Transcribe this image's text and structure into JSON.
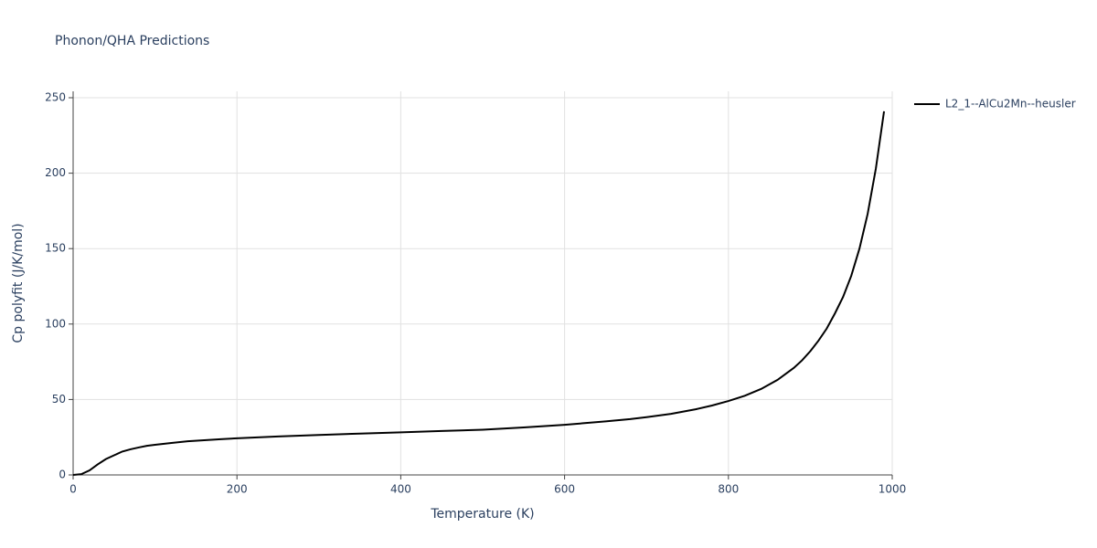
{
  "chart_data": {
    "type": "line",
    "title": "Phonon/QHA Predictions",
    "x_label": "Temperature (K)",
    "y_label": "Cp polyfit (J/K/mol)",
    "x": [
      0,
      10,
      20,
      30,
      40,
      50,
      60,
      70,
      80,
      90,
      100,
      120,
      140,
      160,
      180,
      200,
      250,
      300,
      350,
      400,
      450,
      500,
      550,
      600,
      650,
      680,
      700,
      730,
      760,
      780,
      800,
      820,
      840,
      860,
      880,
      890,
      900,
      910,
      920,
      930,
      940,
      950,
      960,
      970,
      980,
      990
    ],
    "series": [
      {
        "name": "L2_1--AlCu2Mn--heusler",
        "color": "#000000",
        "values": [
          0,
          0.5,
          3,
          7,
          10.5,
          13,
          15.5,
          17,
          18.2,
          19.3,
          20,
          21.2,
          22.3,
          23,
          23.7,
          24.3,
          25.5,
          26.5,
          27.4,
          28.2,
          29.1,
          30,
          31.5,
          33.2,
          35.5,
          37,
          38.3,
          40.5,
          43.5,
          46,
          49,
          52.5,
          57,
          63,
          71,
          76,
          82,
          89,
          97,
          107,
          118,
          132,
          150,
          173,
          203,
          241
        ]
      }
    ],
    "xlim": [
      0,
      1000
    ],
    "xticks": [
      0,
      200,
      400,
      600,
      800,
      1000
    ],
    "ylim": [
      0,
      250
    ],
    "yticks": [
      0,
      50,
      100,
      150,
      200,
      250
    ],
    "grid": true,
    "legend": "right"
  }
}
